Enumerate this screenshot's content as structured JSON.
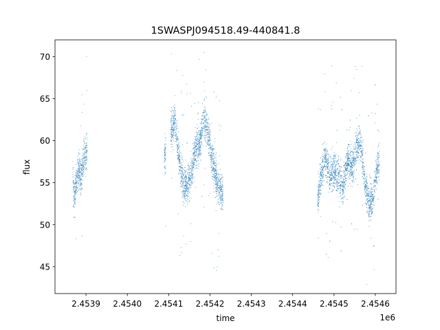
{
  "chart_data": {
    "type": "scatter",
    "title": "1SWASPJ094518.49-440841.8",
    "xlabel": "time",
    "ylabel": "flux",
    "x_offset_label": "1e6",
    "xlim": [
      2453825.0,
      2454650.0
    ],
    "ylim": [
      41.8,
      72.0
    ],
    "x_ticks": [
      2453900,
      2454000,
      2454100,
      2454200,
      2454300,
      2454400,
      2454500,
      2454600
    ],
    "x_tick_labels": [
      "2.4539",
      "2.4540",
      "2.4541",
      "2.4542",
      "2.4543",
      "2.4544",
      "2.4545",
      "2.4546"
    ],
    "y_ticks": [
      45,
      50,
      55,
      60,
      65,
      70
    ],
    "y_tick_labels": [
      "45",
      "50",
      "55",
      "60",
      "65",
      "70"
    ],
    "grid": false,
    "marker_color": "#1f77b4",
    "segments": [
      {
        "x_start": 2453868,
        "x_end": 2453903,
        "profile": [
          [
            2453868,
            55.5
          ],
          [
            2453872,
            53.0
          ],
          [
            2453876,
            55.0
          ],
          [
            2453882,
            56.5
          ],
          [
            2453888,
            55.5
          ],
          [
            2453893,
            57.5
          ],
          [
            2453898,
            58.5
          ],
          [
            2453903,
            58.8
          ]
        ]
      },
      {
        "x_start": 2454089,
        "x_end": 2454093,
        "profile": [
          [
            2454089,
            58.0
          ],
          [
            2454093,
            58.4
          ]
        ]
      },
      {
        "x_start": 2454105,
        "x_end": 2454232,
        "profile": [
          [
            2454105,
            61.0
          ],
          [
            2454115,
            62.5
          ],
          [
            2454125,
            58.0
          ],
          [
            2454135,
            55.0
          ],
          [
            2454145,
            54.5
          ],
          [
            2454155,
            56.0
          ],
          [
            2454165,
            59.0
          ],
          [
            2454175,
            59.5
          ],
          [
            2454185,
            63.0
          ],
          [
            2454195,
            61.0
          ],
          [
            2454205,
            58.0
          ],
          [
            2454215,
            55.5
          ],
          [
            2454225,
            54.0
          ],
          [
            2454232,
            53.5
          ]
        ]
      },
      {
        "x_start": 2454460,
        "x_end": 2454610,
        "profile": [
          [
            2454460,
            53.0
          ],
          [
            2454468,
            55.5
          ],
          [
            2454478,
            58.0
          ],
          [
            2454490,
            56.0
          ],
          [
            2454500,
            56.5
          ],
          [
            2454512,
            55.5
          ],
          [
            2454522,
            54.5
          ],
          [
            2454532,
            57.5
          ],
          [
            2454545,
            57.0
          ],
          [
            2454555,
            59.5
          ],
          [
            2454565,
            59.5
          ],
          [
            2454575,
            55.0
          ],
          [
            2454585,
            52.0
          ],
          [
            2454595,
            53.5
          ],
          [
            2454605,
            57.0
          ],
          [
            2454610,
            57.5
          ]
        ]
      }
    ]
  }
}
